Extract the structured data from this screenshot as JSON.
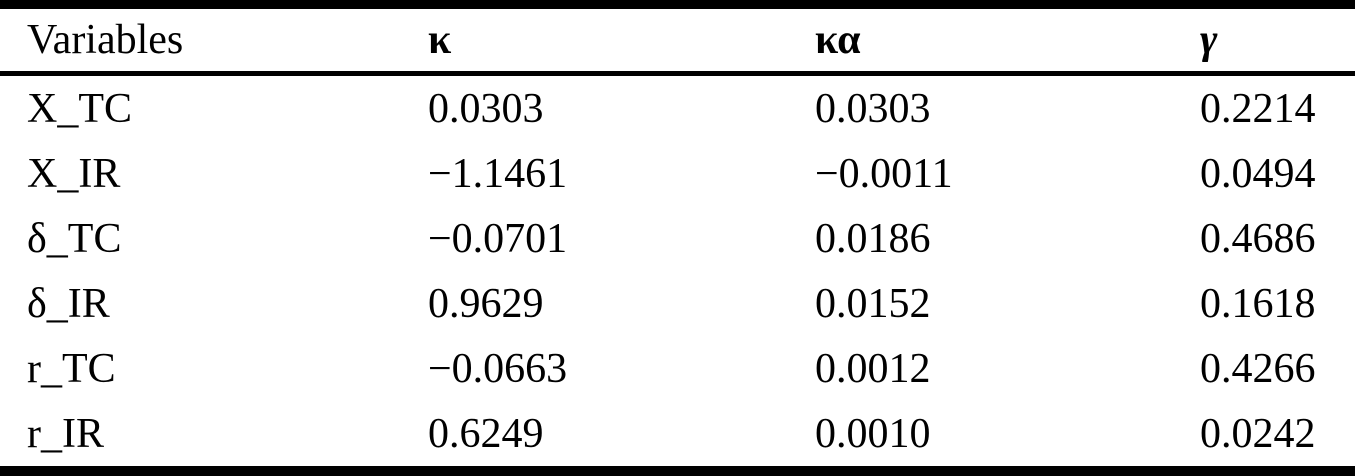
{
  "colors": {
    "background": "#ffffff",
    "text": "#000000",
    "rule": "#000000"
  },
  "table": {
    "header": [
      "Variables",
      "κ",
      "κα",
      "γ"
    ],
    "rows": [
      [
        "X_TC",
        "0.0303",
        "0.0303",
        "0.2214"
      ],
      [
        "X_IR",
        "−1.1461",
        "−0.0011",
        "0.0494"
      ],
      [
        "δ_TC",
        "−0.0701",
        "0.0186",
        "0.4686"
      ],
      [
        "δ_IR",
        "0.9629",
        "0.0152",
        "0.1618"
      ],
      [
        "r_TC",
        "−0.0663",
        "0.0012",
        "0.4266"
      ],
      [
        "r_IR",
        "0.6249",
        "0.0010",
        "0.0242"
      ]
    ]
  },
  "chart_data": {
    "type": "table",
    "columns": [
      "Variables",
      "κ",
      "κα",
      "γ"
    ],
    "rows": [
      {
        "variable": "X_TC",
        "kappa": 0.0303,
        "kappa_alpha": 0.0303,
        "gamma": 0.2214
      },
      {
        "variable": "X_IR",
        "kappa": -1.1461,
        "kappa_alpha": -0.0011,
        "gamma": 0.0494
      },
      {
        "variable": "δ_TC",
        "kappa": -0.0701,
        "kappa_alpha": 0.0186,
        "gamma": 0.4686
      },
      {
        "variable": "δ_IR",
        "kappa": 0.9629,
        "kappa_alpha": 0.0152,
        "gamma": 0.1618
      },
      {
        "variable": "r_TC",
        "kappa": -0.0663,
        "kappa_alpha": 0.0012,
        "gamma": 0.4266
      },
      {
        "variable": "r_IR",
        "kappa": 0.6249,
        "kappa_alpha": 0.001,
        "gamma": 0.0242
      }
    ]
  }
}
